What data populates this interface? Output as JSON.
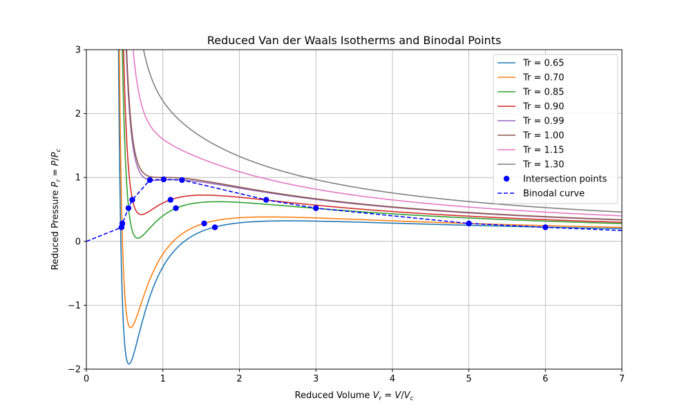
{
  "chart_data": {
    "type": "line",
    "title": "Reduced Van der Waals Isotherms and Binodal Points",
    "xlabel": "Reduced Volume V_r = V/V_c",
    "ylabel": "Reduced Pressure P_r = P/P_c",
    "xlim": [
      0,
      7
    ],
    "ylim": [
      -2,
      3
    ],
    "x_ticks": [
      0,
      1,
      2,
      3,
      4,
      5,
      6,
      7
    ],
    "y_ticks": [
      -2,
      -1,
      0,
      1,
      2,
      3
    ],
    "x_tick_labels": [
      "0",
      "1",
      "2",
      "3",
      "4",
      "5",
      "6",
      "7"
    ],
    "y_tick_labels": [
      "−2",
      "−1",
      "0",
      "1",
      "2",
      "3"
    ],
    "grid": true,
    "legend_position": "top-right",
    "series": [
      {
        "name": "Tr = 0.65",
        "Tr": 0.65,
        "color": "#1f77b4"
      },
      {
        "name": "Tr = 0.70",
        "Tr": 0.7,
        "color": "#ff7f0e"
      },
      {
        "name": "Tr = 0.85",
        "Tr": 0.85,
        "color": "#2ca02c"
      },
      {
        "name": "Tr = 0.90",
        "Tr": 0.9,
        "color": "#d62728"
      },
      {
        "name": "Tr = 0.99",
        "Tr": 0.99,
        "color": "#9467bd"
      },
      {
        "name": "Tr = 1.00",
        "Tr": 1.0,
        "color": "#8c564b"
      },
      {
        "name": "Tr = 1.15",
        "Tr": 1.15,
        "color": "#e377c2"
      },
      {
        "name": "Tr = 1.30",
        "Tr": 1.3,
        "color": "#7f7f7f"
      }
    ],
    "intersection_points": {
      "name": "Intersection points",
      "color": "#0000ff",
      "points": [
        [
          0.46,
          0.22
        ],
        [
          0.47,
          0.28
        ],
        [
          0.55,
          0.52
        ],
        [
          0.6,
          0.65
        ],
        [
          0.83,
          0.96
        ],
        [
          1.01,
          0.97
        ],
        [
          1.1,
          0.65
        ],
        [
          1.17,
          0.52
        ],
        [
          1.25,
          0.96
        ],
        [
          1.54,
          0.28
        ],
        [
          1.68,
          0.22
        ],
        [
          2.35,
          0.65
        ],
        [
          3.0,
          0.52
        ],
        [
          5.0,
          0.28
        ],
        [
          6.0,
          0.22
        ]
      ]
    },
    "binodal_curve": {
      "name": "Binodal curve",
      "color": "#0000ff",
      "points": [
        [
          0.0,
          0.0
        ],
        [
          0.46,
          0.22
        ],
        [
          0.47,
          0.28
        ],
        [
          0.55,
          0.52
        ],
        [
          0.6,
          0.65
        ],
        [
          0.83,
          0.96
        ],
        [
          1.01,
          0.97
        ],
        [
          1.25,
          0.96
        ],
        [
          2.35,
          0.65
        ],
        [
          3.0,
          0.52
        ],
        [
          5.0,
          0.28
        ],
        [
          6.0,
          0.22
        ],
        [
          7.0,
          0.17
        ]
      ]
    }
  }
}
